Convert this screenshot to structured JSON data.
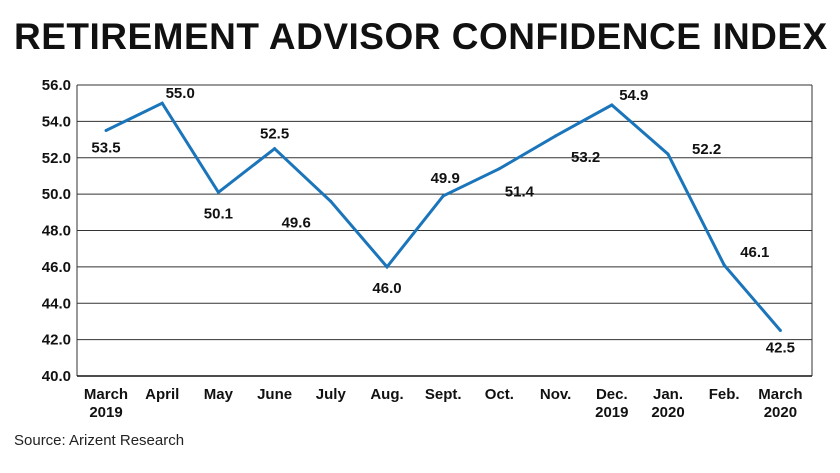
{
  "title": "RETIREMENT ADVISOR CONFIDENCE INDEX",
  "source": "Source: Arizent Research",
  "chart_data": {
    "type": "line",
    "title": "RETIREMENT ADVISOR CONFIDENCE INDEX",
    "categories": [
      [
        "March",
        "2019"
      ],
      [
        "April"
      ],
      [
        "May"
      ],
      [
        "June"
      ],
      [
        "July"
      ],
      [
        "Aug."
      ],
      [
        "Sept."
      ],
      [
        "Oct."
      ],
      [
        "Nov."
      ],
      [
        "Dec.",
        "2019"
      ],
      [
        "Jan.",
        "2020"
      ],
      [
        "Feb."
      ],
      [
        "March",
        "2020"
      ]
    ],
    "series": [
      {
        "values": [
          53.5,
          55.0,
          50.1,
          52.5,
          49.6,
          46.0,
          49.9,
          51.4,
          53.2,
          54.9,
          52.2,
          46.1,
          42.5
        ]
      }
    ],
    "data_labels": [
      "53.5",
      "55.0",
      "50.1",
      "52.5",
      "49.6",
      "46.0",
      "49.9",
      "51.4",
      "53.2",
      "54.9",
      "52.2",
      "46.1",
      "42.5"
    ],
    "yticks": [
      "40.0",
      "42.0",
      "44.0",
      "46.0",
      "48.0",
      "50.0",
      "52.0",
      "54.0",
      "56.0"
    ],
    "ylim": [
      40,
      56
    ],
    "grid": true,
    "colors": {
      "line": "#1b75bb",
      "grid": "#333333"
    }
  }
}
